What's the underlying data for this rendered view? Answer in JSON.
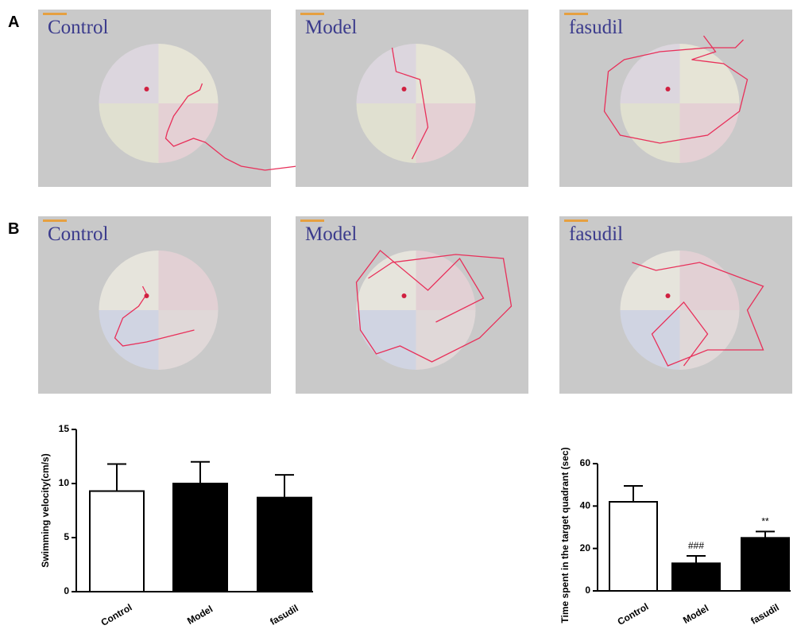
{
  "panels": {
    "labels": [
      "A",
      "B"
    ],
    "rows": [
      [
        "Control",
        "Model",
        "fasudil"
      ],
      [
        "Control",
        "Model",
        "fasudil"
      ]
    ]
  },
  "chart_data": [
    {
      "type": "bar",
      "ylabel": "Swimming velocity(cm/s)",
      "categories": [
        "Control",
        "Model",
        "fasudil"
      ],
      "values": [
        9.3,
        10,
        8.7
      ],
      "errors": [
        2.5,
        2.0,
        2.1
      ],
      "colors": [
        "#ffffff",
        "#000000",
        "#000000"
      ],
      "ylim": [
        0,
        15
      ],
      "yticks": [
        0,
        5,
        10,
        15
      ]
    },
    {
      "type": "bar",
      "ylabel": "Time spent in the target quadrant (sec)",
      "categories": [
        "Control",
        "Model",
        "fasudil"
      ],
      "values": [
        42,
        13,
        25
      ],
      "errors": [
        7.5,
        3.5,
        3
      ],
      "colors": [
        "#ffffff",
        "#000000",
        "#000000"
      ],
      "ylim": [
        0,
        60
      ],
      "yticks": [
        0,
        20,
        40,
        60
      ],
      "value_annotations": [
        null,
        "###",
        "**"
      ]
    }
  ]
}
